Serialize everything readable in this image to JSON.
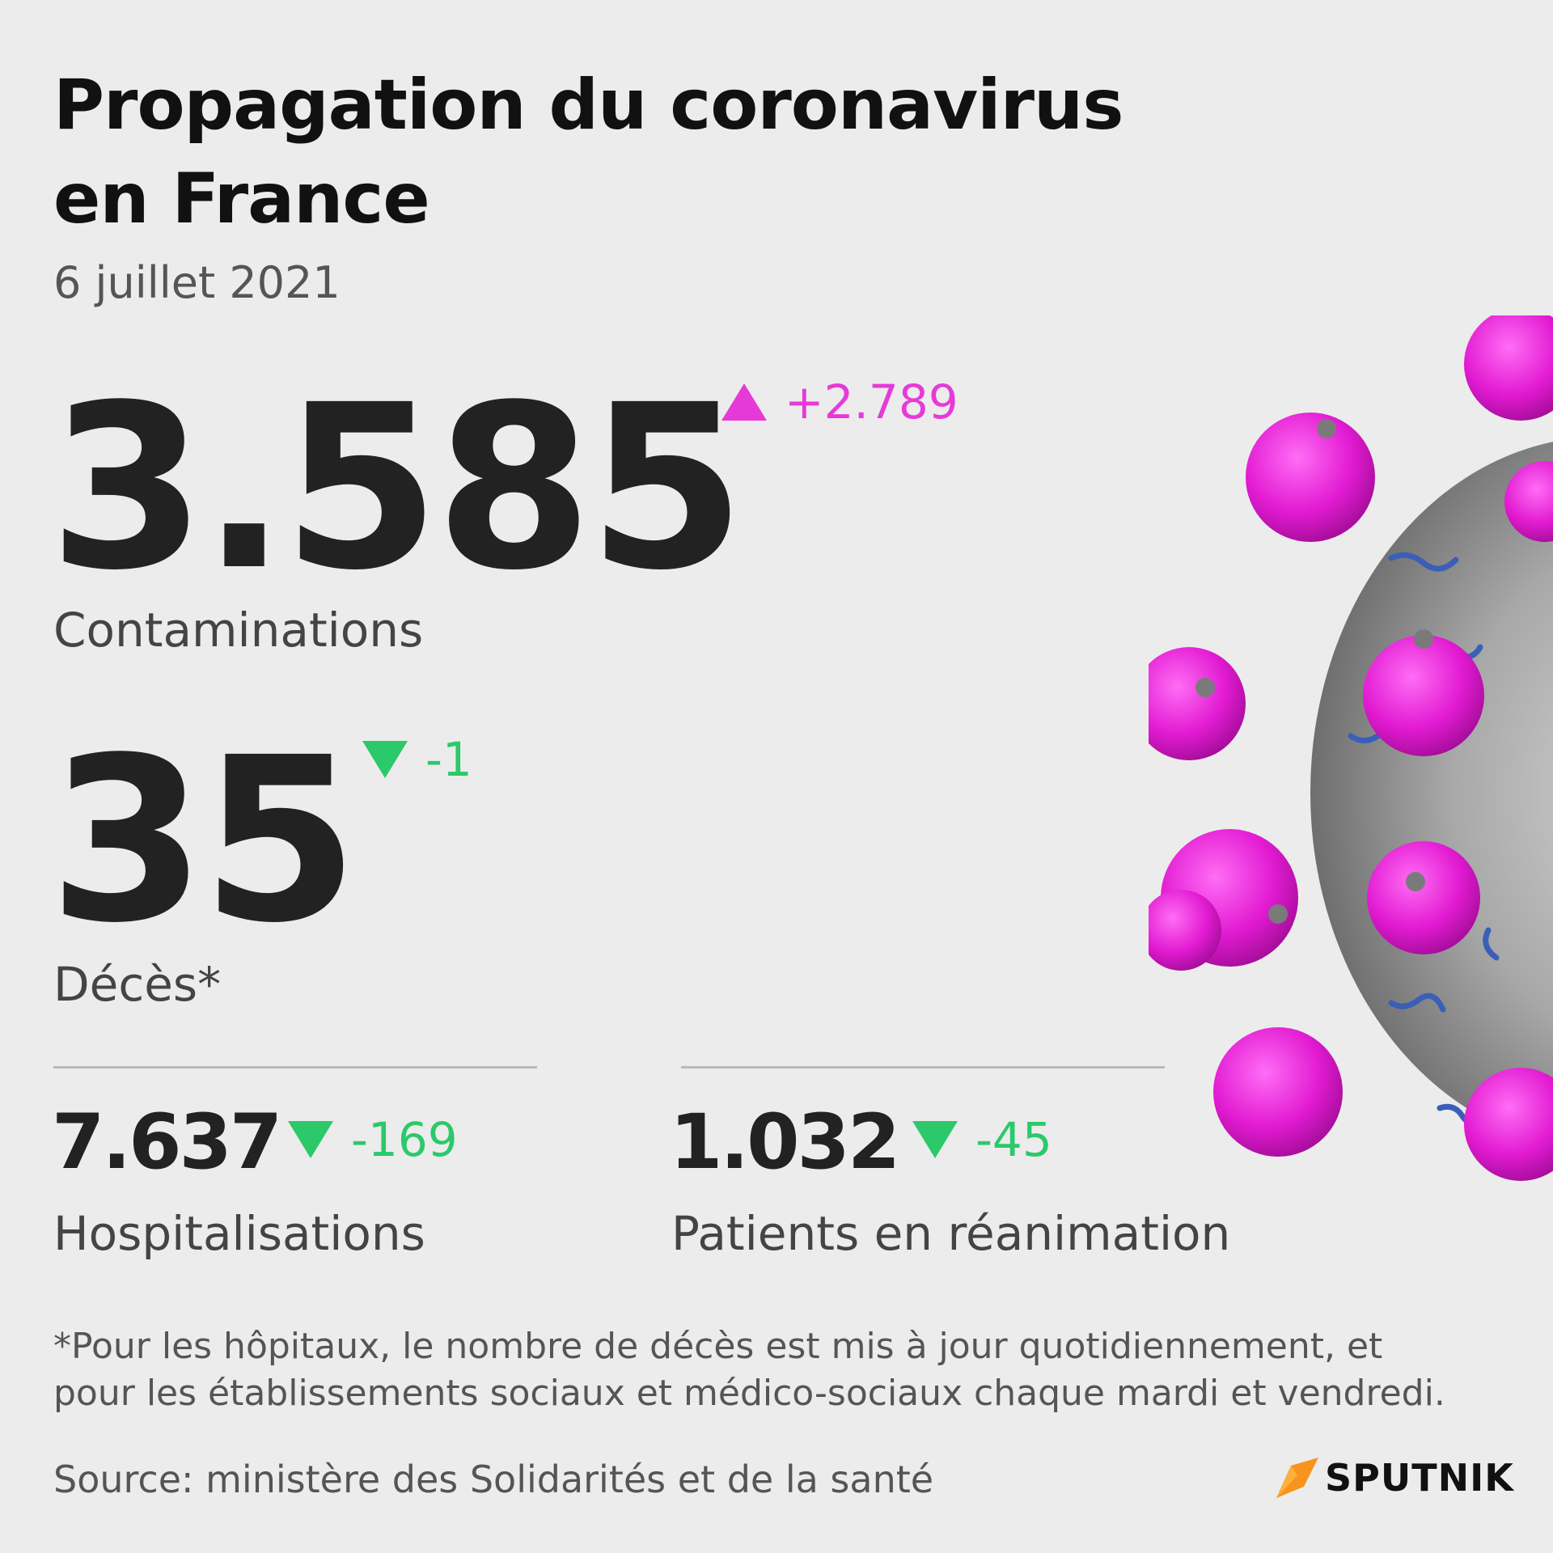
{
  "title": {
    "line1": "Propagation du coronavirus",
    "line2": "en France"
  },
  "date": "6 juillet 2021",
  "contaminations": {
    "value": "3.585",
    "label": "Contaminations",
    "delta": "+2.789",
    "direction": "up",
    "color": "#e63ad8"
  },
  "deces": {
    "value": "35",
    "label": "Décès*",
    "delta": "-1",
    "direction": "down",
    "color": "#2bc96a"
  },
  "hospitalisations": {
    "value": "7.637",
    "label": "Hospitalisations",
    "delta": "-169",
    "direction": "down"
  },
  "reanimation": {
    "value": "1.032",
    "label": "Patients en réanimation",
    "delta": "-45",
    "direction": "down"
  },
  "footnote": {
    "line1": "*Pour les hôpitaux, le nombre de décès est mis à jour quotidiennement, et",
    "line2": "pour les établissements sociaux et médico-sociaux chaque mardi et vendredi."
  },
  "source": "Source: ministère des Solidarités et de la santé",
  "brand": {
    "name": "SPUTNIK",
    "logo_icon": "sputnik-flame-logo"
  },
  "illustration": "coronavirus-particle-icon"
}
